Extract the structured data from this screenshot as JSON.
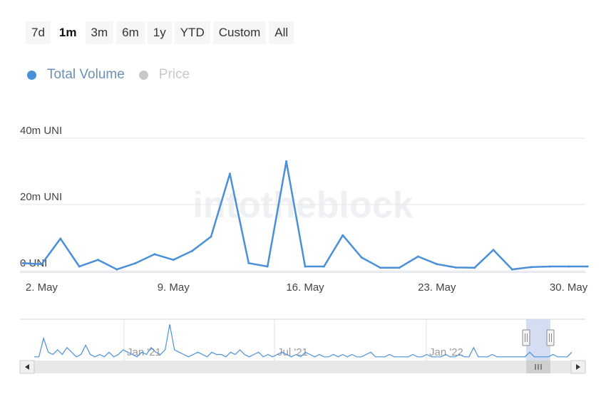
{
  "range_buttons": [
    {
      "label": "7d",
      "active": false
    },
    {
      "label": "1m",
      "active": true
    },
    {
      "label": "3m",
      "active": false
    },
    {
      "label": "6m",
      "active": false
    },
    {
      "label": "1y",
      "active": false
    },
    {
      "label": "YTD",
      "active": false
    },
    {
      "label": "Custom",
      "active": false
    },
    {
      "label": "All",
      "active": false
    }
  ],
  "legend": [
    {
      "label": "Total Volume",
      "color": "#4a90d9",
      "enabled": true
    },
    {
      "label": "Price",
      "color": "#c8c8c8",
      "enabled": false
    }
  ],
  "watermark": "intotheblock",
  "colors": {
    "series": "#4a90d9",
    "grid": "#e6e6e6",
    "navigator_fill": "#c9d4ef",
    "scroll_bg": "#e8e8e8"
  },
  "chart_data": {
    "type": "line",
    "title": "",
    "xlabel": "",
    "ylabel": "",
    "x_ticks": [
      "2. May",
      "9. May",
      "16. May",
      "23. May",
      "30. May"
    ],
    "y_ticks": [
      "0 UNI",
      "20m UNI",
      "40m UNI"
    ],
    "ylim": [
      0,
      40
    ],
    "y_unit": "m UNI",
    "grid": true,
    "legend_position": "top-left",
    "series": [
      {
        "name": "Total Volume",
        "x": [
          "1 May",
          "2 May",
          "3 May",
          "4 May",
          "5 May",
          "6 May",
          "7 May",
          "8 May",
          "9 May",
          "10 May",
          "11 May",
          "12 May",
          "13 May",
          "14 May",
          "15 May",
          "16 May",
          "17 May",
          "18 May",
          "19 May",
          "20 May",
          "21 May",
          "22 May",
          "23 May",
          "24 May",
          "25 May",
          "26 May",
          "27 May",
          "28 May",
          "29 May",
          "30 May",
          "31 May"
        ],
        "values": [
          2.3,
          2.0,
          9.7,
          1.3,
          3.3,
          0.4,
          2.3,
          5.0,
          3.3,
          6.0,
          10.3,
          29.3,
          2.3,
          1.3,
          33.0,
          1.3,
          1.3,
          10.7,
          4.0,
          0.9,
          0.9,
          4.3,
          2.0,
          1.0,
          0.9,
          6.3,
          0.4,
          1.1,
          1.3,
          1.3,
          1.3
        ]
      }
    ],
    "navigator": {
      "x_ticks": [
        "Jan '21",
        "Jul '21",
        "Jan '22"
      ],
      "values": [
        1,
        1,
        9,
        3,
        2,
        4,
        2,
        5,
        3,
        1,
        2,
        6,
        2,
        1,
        2,
        1,
        3,
        1,
        2,
        4,
        3,
        2,
        1,
        3,
        2,
        5,
        3,
        2,
        4,
        15,
        4,
        3,
        2,
        1,
        2,
        3,
        2,
        1,
        3,
        2,
        2,
        1,
        3,
        2,
        4,
        2,
        1,
        2,
        3,
        1,
        2,
        1,
        2,
        3,
        2,
        1,
        2,
        1,
        3,
        2,
        1,
        2,
        1,
        1,
        2,
        1,
        2,
        1,
        2,
        1,
        1,
        2,
        3,
        1,
        1,
        1,
        2,
        1,
        1,
        1,
        1,
        2,
        1,
        1,
        2,
        1,
        1,
        1,
        2,
        1,
        1,
        2,
        1,
        1,
        5,
        1,
        1,
        1,
        2,
        1,
        1,
        1,
        1,
        1,
        1,
        1,
        3,
        1,
        1,
        1,
        1,
        2,
        1,
        1,
        1,
        3
      ]
    }
  }
}
